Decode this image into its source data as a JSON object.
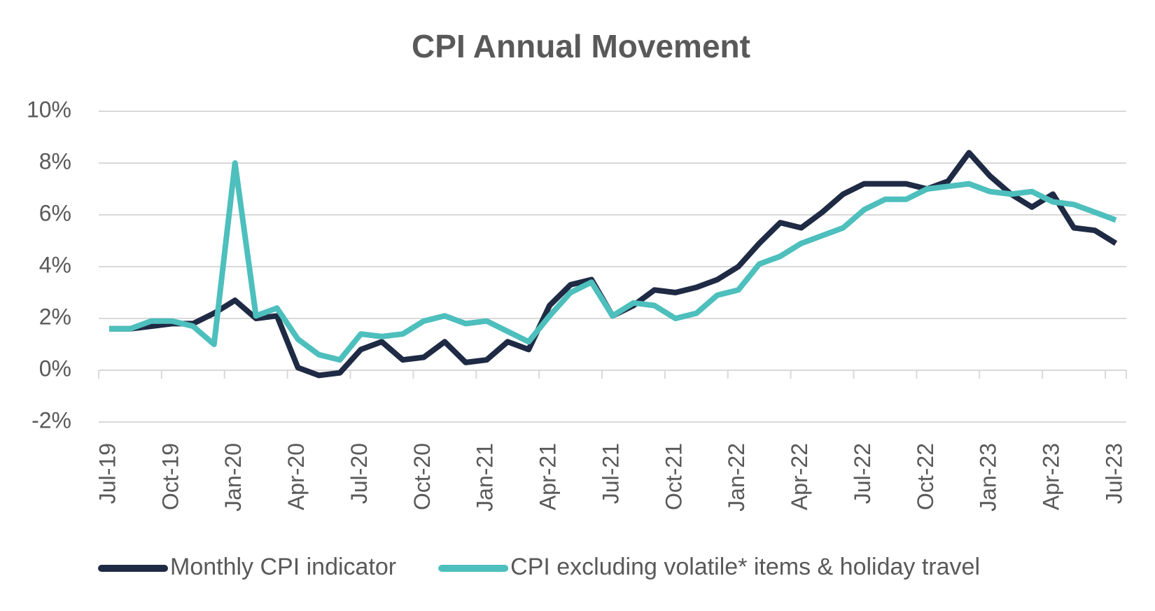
{
  "chart_data": {
    "type": "line",
    "title": "CPI Annual Movement",
    "categories": [
      "Jul-19",
      null,
      null,
      "Oct-19",
      null,
      null,
      "Jan-20",
      null,
      null,
      "Apr-20",
      null,
      null,
      "Jul-20",
      null,
      null,
      "Oct-20",
      null,
      null,
      "Jan-21",
      null,
      null,
      "Apr-21",
      null,
      null,
      "Jul-21",
      null,
      null,
      "Oct-21",
      null,
      null,
      "Jan-22",
      null,
      null,
      "Apr-22",
      null,
      null,
      "Jul-22",
      null,
      null,
      "Oct-22",
      null,
      null,
      "Jan-23",
      null,
      null,
      "Apr-23",
      null,
      null,
      "Jul-23"
    ],
    "series": [
      {
        "name": "Monthly CPI indicator",
        "color": "#1f2a44",
        "values": [
          1.6,
          1.6,
          1.7,
          1.8,
          1.8,
          2.2,
          2.7,
          2.0,
          2.1,
          0.1,
          -0.2,
          -0.1,
          0.8,
          1.1,
          0.4,
          0.5,
          1.1,
          0.3,
          0.4,
          1.1,
          0.8,
          2.5,
          3.3,
          3.5,
          2.1,
          2.5,
          3.1,
          3.0,
          3.2,
          3.5,
          4.0,
          4.9,
          5.7,
          5.5,
          6.1,
          6.8,
          7.2,
          7.2,
          7.2,
          7.0,
          7.3,
          8.4,
          7.5,
          6.8,
          6.3,
          6.8,
          5.5,
          5.4,
          4.9
        ]
      },
      {
        "name": "CPI excluding volatile* items & holiday travel",
        "color": "#4dbfbd",
        "values": [
          1.6,
          1.6,
          1.9,
          1.9,
          1.7,
          1.0,
          8.0,
          2.1,
          2.4,
          1.2,
          0.6,
          0.4,
          1.4,
          1.3,
          1.4,
          1.9,
          2.1,
          1.8,
          1.9,
          1.5,
          1.1,
          2.1,
          3.0,
          3.4,
          2.1,
          2.6,
          2.5,
          2.0,
          2.2,
          2.9,
          3.1,
          4.1,
          4.4,
          4.9,
          5.2,
          5.5,
          6.2,
          6.6,
          6.6,
          7.0,
          7.1,
          7.2,
          6.9,
          6.8,
          6.9,
          6.5,
          6.4,
          6.1,
          5.8
        ]
      }
    ],
    "ylim": [
      -2,
      10
    ],
    "yticks": [
      {
        "value": -2,
        "label": "-2%"
      },
      {
        "value": 0,
        "label": "0%"
      },
      {
        "value": 2,
        "label": "2%"
      },
      {
        "value": 4,
        "label": "4%"
      },
      {
        "value": 6,
        "label": "6%"
      },
      {
        "value": 8,
        "label": "8%"
      },
      {
        "value": 10,
        "label": "10%"
      }
    ],
    "grid": true,
    "legend": "bottom"
  }
}
